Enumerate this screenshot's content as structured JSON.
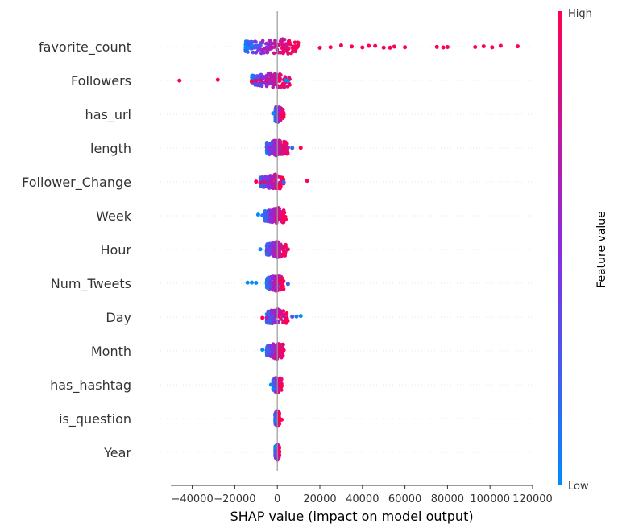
{
  "chart_data": {
    "type": "scatter",
    "subtype": "beeswarm",
    "xlabel": "SHAP value (impact on model output)",
    "xlim": [
      -55000,
      120000
    ],
    "xticks": [
      -40000,
      -20000,
      0,
      20000,
      40000,
      60000,
      80000,
      100000,
      120000
    ],
    "xtick_labels": [
      "−40000",
      "−20000",
      "0",
      "20000",
      "40000",
      "60000",
      "80000",
      "100000",
      "120000"
    ],
    "grid": "dotted horizontal row guides",
    "colorbar": {
      "title": "Feature value",
      "high_label": "High",
      "low_label": "Low",
      "low_color": "#008bfb",
      "high_color": "#ff0052",
      "mid_color": "#8a2ce0"
    },
    "features": [
      {
        "name": "favorite_count",
        "spread": [
          -15000,
          10000
        ],
        "points": [
          [
            -14000,
            0.0
          ],
          [
            -12000,
            0.1
          ],
          [
            -10000,
            0.2
          ],
          [
            -8000,
            0.25
          ],
          [
            20000,
            0.92
          ],
          [
            25000,
            0.95
          ],
          [
            30000,
            0.97
          ],
          [
            35000,
            0.98
          ],
          [
            40000,
            0.98
          ],
          [
            43000,
            1.0
          ],
          [
            46000,
            1.0
          ],
          [
            50000,
            1.0
          ],
          [
            53000,
            1.0
          ],
          [
            55000,
            1.0
          ],
          [
            60000,
            1.0
          ],
          [
            75000,
            1.0
          ],
          [
            78000,
            1.0
          ],
          [
            80000,
            1.0
          ],
          [
            93000,
            1.0
          ],
          [
            97000,
            1.0
          ],
          [
            101000,
            1.0
          ],
          [
            105000,
            1.0
          ],
          [
            113000,
            1.0
          ]
        ]
      },
      {
        "name": "Followers",
        "spread": [
          -12000,
          6000
        ],
        "points": [
          [
            -46000,
            1.0
          ],
          [
            -28000,
            1.0
          ],
          [
            -12000,
            0.95
          ],
          [
            -10000,
            0.9
          ],
          [
            -8000,
            0.9
          ],
          [
            -5000,
            0.85
          ],
          [
            4000,
            0.0
          ],
          [
            5000,
            0.0
          ]
        ]
      },
      {
        "name": "has_url",
        "spread": [
          -1000,
          3000
        ],
        "points": [
          [
            -2000,
            0.0
          ],
          [
            2000,
            1.0
          ],
          [
            3000,
            1.0
          ]
        ]
      },
      {
        "name": "length",
        "spread": [
          -5000,
          5000
        ],
        "points": [
          [
            -5000,
            0.3
          ],
          [
            -4000,
            0.5
          ],
          [
            5000,
            0.7
          ],
          [
            7000,
            0.2
          ],
          [
            11000,
            1.0
          ]
        ]
      },
      {
        "name": "Follower_Change",
        "spread": [
          -8000,
          3000
        ],
        "points": [
          [
            -10000,
            1.0
          ],
          [
            -8000,
            0.9
          ],
          [
            -6000,
            0.8
          ],
          [
            3000,
            0.2
          ],
          [
            14000,
            1.0
          ]
        ]
      },
      {
        "name": "Week",
        "spread": [
          -6000,
          4000
        ],
        "points": [
          [
            -9000,
            0.0
          ],
          [
            -7000,
            0.1
          ],
          [
            -5000,
            0.2
          ],
          [
            2000,
            0.9
          ],
          [
            3000,
            1.0
          ]
        ]
      },
      {
        "name": "Hour",
        "spread": [
          -5000,
          4000
        ],
        "points": [
          [
            -8000,
            0.0
          ],
          [
            -5000,
            0.4
          ],
          [
            3000,
            0.8
          ],
          [
            5000,
            0.9
          ]
        ]
      },
      {
        "name": "Num_Tweets",
        "spread": [
          -5000,
          3000
        ],
        "points": [
          [
            -14000,
            0.0
          ],
          [
            -12000,
            0.0
          ],
          [
            -10000,
            0.0
          ],
          [
            -5000,
            0.1
          ],
          [
            5000,
            0.2
          ]
        ]
      },
      {
        "name": "Day",
        "spread": [
          -5000,
          5000
        ],
        "points": [
          [
            -7000,
            1.0
          ],
          [
            -5000,
            0.6
          ],
          [
            3000,
            0.7
          ],
          [
            7000,
            0.3
          ],
          [
            9000,
            0.1
          ],
          [
            11000,
            0.0
          ]
        ]
      },
      {
        "name": "Month",
        "spread": [
          -5000,
          3000
        ],
        "points": [
          [
            -7000,
            0.0
          ],
          [
            -5000,
            0.2
          ],
          [
            2000,
            0.9
          ],
          [
            3000,
            1.0
          ]
        ]
      },
      {
        "name": "has_hashtag",
        "spread": [
          -2000,
          2000
        ],
        "points": [
          [
            -3000,
            0.0
          ],
          [
            2000,
            1.0
          ]
        ]
      },
      {
        "name": "is_question",
        "spread": [
          -1000,
          1000
        ],
        "points": [
          [
            2000,
            1.0
          ]
        ]
      },
      {
        "name": "Year",
        "spread": [
          -1000,
          1000
        ],
        "points": []
      }
    ]
  }
}
